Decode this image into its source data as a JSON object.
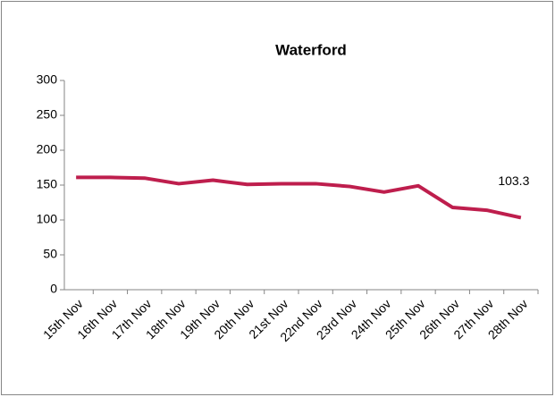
{
  "chart_data": {
    "type": "line",
    "title": "Waterford",
    "categories": [
      "15th Nov",
      "16th Nov",
      "17th Nov",
      "18th Nov",
      "19th Nov",
      "20th Nov",
      "21st Nov",
      "22nd Nov",
      "23rd Nov",
      "24th Nov",
      "25th Nov",
      "26th Nov",
      "27th Nov",
      "28th Nov"
    ],
    "series": [
      {
        "name": "Waterford",
        "color": "#be1e4d",
        "values": [
          161,
          161,
          160,
          152,
          157,
          151,
          152,
          152,
          148,
          140,
          149,
          118,
          114,
          103.3
        ],
        "value_labels": [
          null,
          null,
          null,
          null,
          null,
          null,
          null,
          null,
          null,
          null,
          null,
          null,
          null,
          "103.3"
        ]
      }
    ],
    "ylim": [
      0,
      300
    ],
    "yticks": [
      0,
      50,
      100,
      150,
      200,
      250,
      300
    ],
    "legend": false,
    "grid": false
  }
}
